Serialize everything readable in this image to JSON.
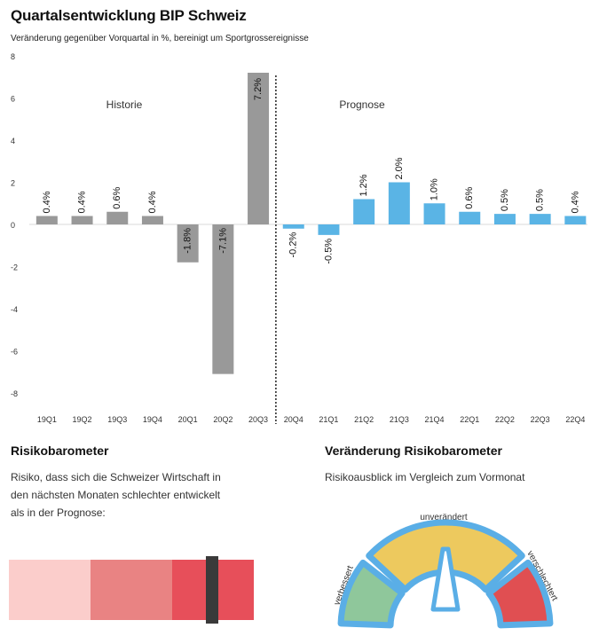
{
  "header": {
    "title": "Quartalsentwicklung BIP Schweiz",
    "subtitle": "Veränderung gegenüber Vorquartal in %, bereinigt um Sportgrossereignisse"
  },
  "chart_data": {
    "type": "bar",
    "categories": [
      "19Q1",
      "19Q2",
      "19Q3",
      "19Q4",
      "20Q1",
      "20Q2",
      "20Q3",
      "20Q4",
      "21Q1",
      "21Q2",
      "21Q3",
      "21Q4",
      "22Q1",
      "22Q2",
      "22Q3",
      "22Q4"
    ],
    "values": [
      0.4,
      0.4,
      0.6,
      0.4,
      -1.8,
      -7.1,
      7.2,
      -0.2,
      -0.5,
      1.2,
      2.0,
      1.0,
      0.6,
      0.5,
      0.5,
      0.4
    ],
    "labels": [
      "0.4%",
      "0.4%",
      "0.6%",
      "0.4%",
      "-1.8%",
      "-7.1%",
      "7.2%",
      "-0.2%",
      "-0.5%",
      "1.2%",
      "2.0%",
      "1.0%",
      "0.6%",
      "0.5%",
      "0.5%",
      "0.4%"
    ],
    "ylim": [
      -9,
      8
    ],
    "yticks": [
      8,
      6,
      4,
      2,
      0,
      -2,
      -4,
      -6,
      -8
    ],
    "annotations": {
      "history": "Historie",
      "forecast": "Prognose"
    },
    "history_count": 7,
    "colors": {
      "history": "#999999",
      "forecast": "#5ab4e5"
    },
    "grid": false
  },
  "risk_barometer": {
    "title": "Risikobarometer",
    "description_lines": [
      "Risiko, dass sich die Schweizer Wirtschaft in",
      "den nächsten Monaten schlechter entwickelt",
      "als in der Prognose:"
    ],
    "segment_colors": [
      "#fbcdcb",
      "#e98383",
      "#e74f5a"
    ],
    "marker_color": "#3a3a3a",
    "level": 0.83
  },
  "risk_change": {
    "title": "Veränderung Risikobarometer",
    "description": "Risikoausblick im Vergleich zum Vormonat",
    "labels": {
      "left": "verbessert",
      "top": "unverändert",
      "right": "verschlechtert"
    },
    "colors": {
      "left": "#8fc79b",
      "top": "#edc95e",
      "right": "#e04f52",
      "border": "#5aaee6"
    },
    "state": "unverändert"
  }
}
